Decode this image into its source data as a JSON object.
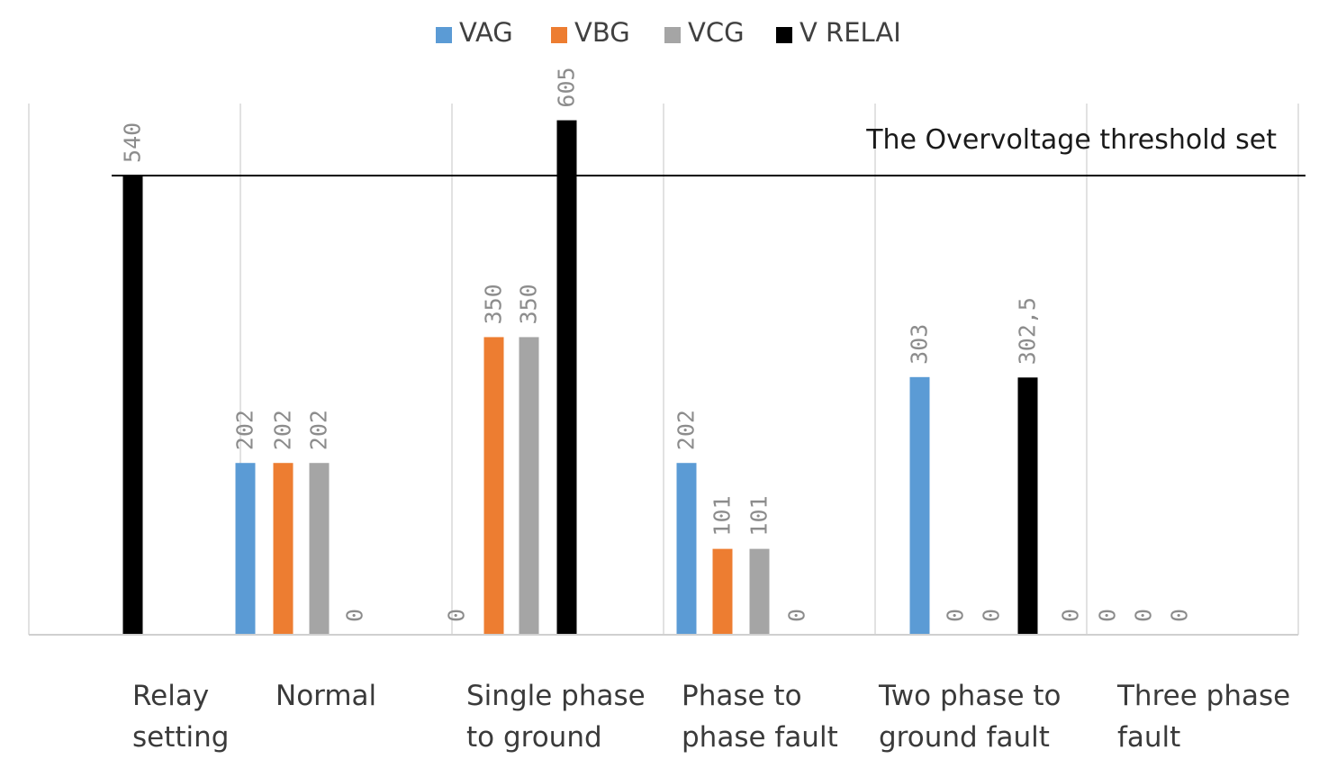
{
  "chart_data": {
    "type": "bar",
    "categories": [
      [
        "Relay",
        "setting"
      ],
      [
        "Normal"
      ],
      [
        "Single phase",
        "to ground"
      ],
      [
        "Phase to",
        "phase fault"
      ],
      [
        "Two phase to",
        "ground fault"
      ],
      [
        "Three phase",
        "fault"
      ]
    ],
    "series": [
      {
        "name": "VAG",
        "color": "#5B9BD5",
        "values": [
          null,
          202,
          0,
          202,
          303,
          0
        ],
        "labels": [
          "",
          "202",
          "0",
          "202",
          "303",
          "0"
        ]
      },
      {
        "name": "VBG",
        "color": "#ED7D31",
        "values": [
          null,
          202,
          350,
          101,
          0,
          0
        ],
        "labels": [
          "",
          "202",
          "350",
          "101",
          "0",
          "0"
        ]
      },
      {
        "name": "VCG",
        "color": "#A5A5A5",
        "values": [
          null,
          202,
          350,
          101,
          0,
          0
        ],
        "labels": [
          "",
          "202",
          "350",
          "101",
          "0",
          "0"
        ]
      },
      {
        "name": "V RELAI",
        "color": "#000000",
        "values": [
          540,
          0,
          605,
          0,
          302.5,
          0
        ],
        "labels": [
          "540",
          "0",
          "605",
          "0",
          "302,5",
          "0"
        ]
      }
    ],
    "threshold": {
      "value": 540,
      "label": "The Overvoltage threshold set"
    },
    "ylim": [
      0,
      680
    ],
    "grid": "vertical category separators",
    "legend": "top-center"
  }
}
